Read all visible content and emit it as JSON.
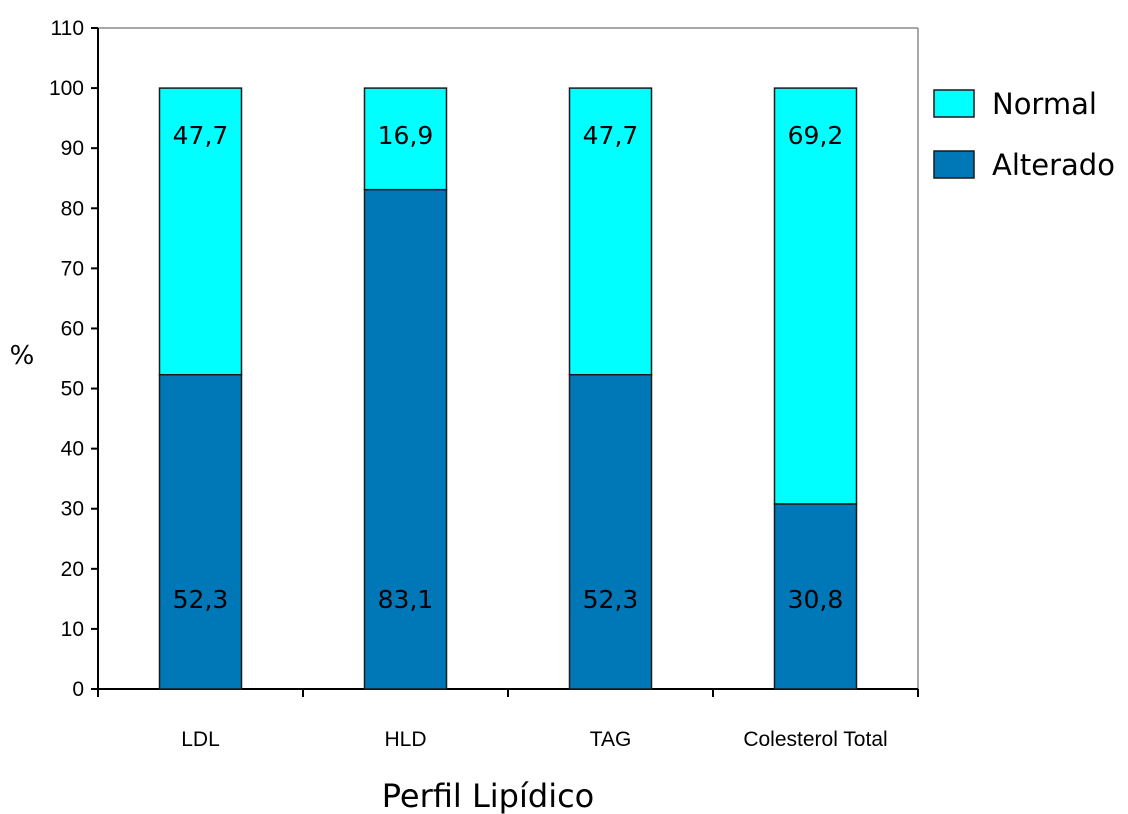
{
  "chart_data": {
    "type": "bar",
    "stacked": true,
    "title": "",
    "xlabel": "Perfil Lipídico",
    "ylabel": "%",
    "ylim": [
      0,
      110
    ],
    "yticks": [
      0,
      10,
      20,
      30,
      40,
      50,
      60,
      70,
      80,
      90,
      100,
      110
    ],
    "grid": false,
    "legend_position": "right",
    "categories": [
      "LDL",
      "HLD",
      "TAG",
      "Colesterol Total"
    ],
    "series": [
      {
        "name": "Alterado",
        "color": "#0077b6",
        "values": [
          52.3,
          83.1,
          52.3,
          30.8
        ],
        "labels": [
          "52,3",
          "83,1",
          "52,3",
          "30,8"
        ]
      },
      {
        "name": "Normal",
        "color": "#00ffff",
        "values": [
          47.7,
          16.9,
          47.7,
          69.2
        ],
        "labels": [
          "47,7",
          "16,9",
          "47,7",
          "69,2"
        ]
      }
    ],
    "legend_order": [
      "Normal",
      "Alterado"
    ]
  }
}
